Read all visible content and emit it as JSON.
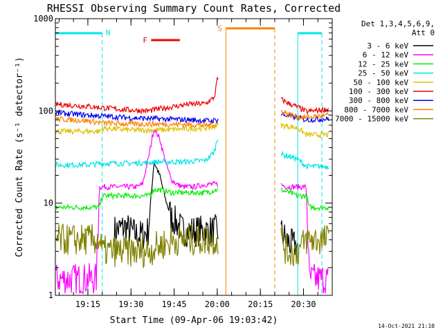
{
  "chart_data": {
    "type": "line",
    "title": "RHESSI Observing Summary Count Rates, Corrected",
    "xlabel": "Start Time (09-Apr-06 19:03:42)",
    "ylabel": "Corrected Count Rate (s⁻¹ detector⁻¹)",
    "yscale": "log",
    "ylim": [
      1,
      1000
    ],
    "xlim": [
      "19:03:42",
      "20:40:00"
    ],
    "x_ticks": [
      "19:15",
      "19:30",
      "19:45",
      "20:00",
      "20:15",
      "20:30"
    ],
    "y_ticks": [
      "1",
      "10",
      "100",
      "1000"
    ],
    "legend_title": [
      "Det 1,3,4,5,6,9,",
      "Att 0"
    ],
    "legend_position": "right",
    "footer": "14-Oct-2021 21:10",
    "grid": false,
    "annotations": [
      {
        "label": "N",
        "type": "night",
        "color": "#00e5e5",
        "x_start": "19:03:42",
        "x_end": "19:20:00",
        "ranges": [
          [
            "19:03:42",
            "19:20:00"
          ],
          [
            "20:28:00",
            "20:39:00"
          ]
        ]
      },
      {
        "label": "F",
        "type": "flare",
        "color": "#ee0000",
        "x_start": "19:37:00",
        "x_end": "19:47:00"
      },
      {
        "label": "S",
        "type": "saa",
        "color": "#ff8000",
        "x_start": "20:03:00",
        "x_end": "20:20:00"
      }
    ],
    "gaps": [
      [
        "20:00:30",
        "20:22:00"
      ]
    ],
    "series": [
      {
        "name": "3 - 6 keV",
        "color": "#000000",
        "x": [
          "19:03:42",
          "19:20",
          "19:24",
          "19:28",
          "19:32",
          "19:34",
          "19:36",
          "19:38",
          "19:40",
          "19:42",
          "19:44",
          "19:46",
          "19:48",
          "19:52",
          "19:56",
          "20:00",
          "20:22",
          "20:24",
          "20:26",
          "20:28"
        ],
        "values": [
          null,
          null,
          5,
          5.5,
          4.5,
          4.5,
          5,
          28,
          20,
          11,
          7,
          6,
          5,
          5,
          5,
          5,
          5,
          4,
          3.5,
          3.5
        ]
      },
      {
        "name": "6 - 12 keV",
        "color": "#ff00ff",
        "x": [
          "19:03:42",
          "19:18",
          "19:19",
          "19:24",
          "19:28",
          "19:32",
          "19:34",
          "19:36",
          "19:38",
          "19:40",
          "19:42",
          "19:44",
          "19:46",
          "19:48",
          "19:52",
          "19:56",
          "20:00",
          "20:22",
          "20:24",
          "20:28",
          "20:31",
          "20:32",
          "20:39"
        ],
        "values": [
          1.5,
          1.5,
          15,
          15,
          15,
          15,
          16,
          30,
          65,
          50,
          28,
          18,
          16,
          15,
          15,
          16,
          16,
          16,
          15,
          15,
          15,
          1.5,
          1.5
        ]
      },
      {
        "name": "12 - 25 keV",
        "color": "#00ee00",
        "x": [
          "19:03:42",
          "19:19",
          "19:20",
          "19:30",
          "19:36",
          "19:38",
          "19:40",
          "19:44",
          "19:50",
          "19:56",
          "20:00",
          "20:22",
          "20:25",
          "20:28",
          "20:31",
          "20:32",
          "20:39"
        ],
        "values": [
          9,
          9,
          12,
          12,
          12,
          14,
          14,
          13,
          13,
          13,
          14,
          14,
          13,
          12,
          12,
          9,
          9
        ]
      },
      {
        "name": "25 - 50 keV",
        "color": "#00e5e5",
        "x": [
          "19:03:42",
          "19:15",
          "19:20",
          "19:30",
          "19:40",
          "19:48",
          "19:56",
          "19:59",
          "20:00",
          "20:22",
          "20:25",
          "20:28",
          "20:31",
          "20:39"
        ],
        "values": [
          26,
          26,
          27,
          27,
          28,
          28,
          29,
          36,
          50,
          34,
          32,
          30,
          25,
          25
        ]
      },
      {
        "name": "50 - 100 keV",
        "color": "#e0c000",
        "x": [
          "19:03:42",
          "19:19",
          "19:20",
          "19:30",
          "19:40",
          "19:50",
          "19:58",
          "20:00",
          "20:22",
          "20:25",
          "20:28",
          "20:31",
          "20:39"
        ],
        "values": [
          60,
          60,
          65,
          62,
          62,
          64,
          66,
          70,
          70,
          68,
          65,
          55,
          55
        ]
      },
      {
        "name": "100 - 300 keV",
        "color": "#ee0000",
        "x": [
          "19:03:42",
          "19:15",
          "19:20",
          "19:30",
          "19:36",
          "19:42",
          "19:50",
          "19:56",
          "19:59",
          "20:00",
          "20:22",
          "20:25",
          "20:28",
          "20:31",
          "20:39"
        ],
        "values": [
          118,
          112,
          108,
          102,
          100,
          108,
          118,
          120,
          140,
          220,
          135,
          120,
          110,
          98,
          105
        ]
      },
      {
        "name": "300 - 800 keV",
        "color": "#0000ee",
        "x": [
          "19:03:42",
          "19:15",
          "19:20",
          "19:30",
          "19:40",
          "19:50",
          "19:58",
          "20:00",
          "20:22",
          "20:25",
          "20:28",
          "20:31",
          "20:39"
        ],
        "values": [
          95,
          90,
          88,
          84,
          82,
          80,
          78,
          80,
          92,
          88,
          84,
          80,
          82
        ]
      },
      {
        "name": "800 - 7000 keV",
        "color": "#ff8000",
        "x": [
          "19:03:42",
          "19:15",
          "19:20",
          "19:30",
          "19:40",
          "19:50",
          "19:58",
          "20:00",
          "20:22",
          "20:25",
          "20:28",
          "20:31",
          "20:39"
        ],
        "values": [
          82,
          78,
          74,
          72,
          72,
          71,
          70,
          72,
          100,
          92,
          86,
          85,
          90
        ]
      },
      {
        "name": "7000 - 15000 keV",
        "color": "#808000",
        "x": [
          "19:03:42",
          "19:19",
          "19:20",
          "19:30",
          "19:36",
          "19:40",
          "19:46",
          "19:50",
          "19:56",
          "20:00",
          "20:22",
          "20:24",
          "20:28",
          "20:31",
          "20:39"
        ],
        "values": [
          4,
          4,
          3,
          3,
          3,
          3.5,
          4,
          4,
          4,
          4,
          4.5,
          3,
          3,
          4,
          4
        ]
      }
    ]
  }
}
